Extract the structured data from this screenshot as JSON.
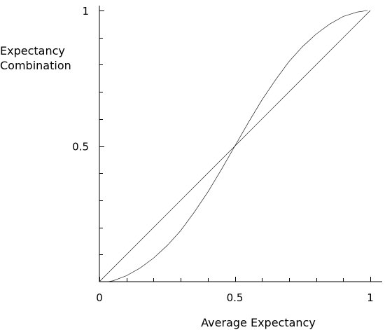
{
  "chart_data": {
    "type": "line",
    "xlabel": "Average Expectancy",
    "ylabel": [
      "Expectancy",
      "Combination"
    ],
    "xlim": [
      0,
      1
    ],
    "ylim": [
      0,
      1
    ],
    "x_tick_labels": [
      "0",
      "0.5",
      "1"
    ],
    "y_tick_labels": [
      "0.5",
      "1"
    ],
    "x_ticks": [
      0,
      0.1,
      0.2,
      0.3,
      0.4,
      0.5,
      0.6,
      0.7,
      0.8,
      0.9,
      1
    ],
    "y_ticks": [
      0.1,
      0.2,
      0.3,
      0.4,
      0.5,
      0.6,
      0.7,
      0.8,
      0.9,
      1
    ],
    "grid": false,
    "series": [
      {
        "x": [
          0,
          1
        ],
        "y": [
          0,
          1
        ]
      },
      {
        "x": [
          0.03,
          0.05,
          0.1,
          0.15,
          0.2,
          0.25,
          0.3,
          0.35,
          0.4,
          0.45,
          0.5,
          0.55,
          0.6,
          0.65,
          0.7,
          0.75,
          0.8,
          0.85,
          0.9,
          0.95,
          0.99
        ],
        "y": [
          0.0,
          0.003,
          0.022,
          0.05,
          0.087,
          0.133,
          0.188,
          0.256,
          0.33,
          0.413,
          0.5,
          0.587,
          0.67,
          0.744,
          0.812,
          0.867,
          0.913,
          0.95,
          0.978,
          0.994,
          1.0
        ]
      }
    ]
  }
}
